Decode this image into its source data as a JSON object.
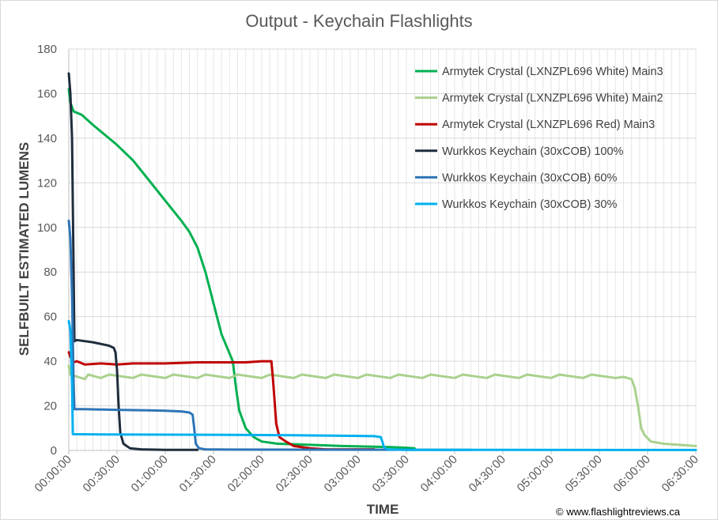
{
  "chart_data": {
    "type": "line",
    "title": "Output - Keychain Flashlights",
    "xlabel": "TIME",
    "ylabel": "SELFBUILT ESTIMATED LUMENS",
    "credit": "© www.flashlightreviews.ca",
    "xlim_minutes": [
      0,
      390
    ],
    "ylim": [
      0,
      180
    ],
    "y_ticks": [
      0,
      20,
      40,
      60,
      80,
      100,
      120,
      140,
      160,
      180
    ],
    "x_ticks": [
      "00:00:00",
      "00:30:00",
      "01:00:00",
      "01:30:00",
      "02:00:00",
      "02:30:00",
      "03:00:00",
      "03:30:00",
      "04:00:00",
      "04:30:00",
      "05:00:00",
      "05:30:00",
      "06:00:00",
      "06:30:00"
    ],
    "grid": true,
    "legend_position": "top-right",
    "series": [
      {
        "name": "Armytek Crystal (LXNZPL696 White) Main3",
        "color": "#00b050",
        "points": [
          [
            0,
            162
          ],
          [
            1,
            156
          ],
          [
            3,
            152
          ],
          [
            8,
            150.5
          ],
          [
            15,
            146
          ],
          [
            25,
            140
          ],
          [
            30,
            137
          ],
          [
            40,
            130
          ],
          [
            50,
            121
          ],
          [
            60,
            112
          ],
          [
            70,
            103
          ],
          [
            75,
            98
          ],
          [
            80,
            91
          ],
          [
            85,
            80
          ],
          [
            90,
            66
          ],
          [
            95,
            52
          ],
          [
            102,
            40
          ],
          [
            104,
            28
          ],
          [
            106,
            18
          ],
          [
            110,
            10
          ],
          [
            115,
            6
          ],
          [
            120,
            4
          ],
          [
            130,
            3
          ],
          [
            150,
            2.5
          ],
          [
            170,
            2
          ],
          [
            200,
            1.5
          ],
          [
            210,
            1.2
          ],
          [
            215,
            1
          ]
        ]
      },
      {
        "name": "Armytek Crystal (LXNZPL696 White) Main2",
        "color": "#a9d18e",
        "points": [
          [
            0,
            38
          ],
          [
            1,
            34
          ],
          [
            10,
            32
          ],
          [
            12,
            34
          ],
          [
            20,
            32.5
          ],
          [
            25,
            34
          ],
          [
            40,
            32.5
          ],
          [
            45,
            34
          ],
          [
            60,
            32.5
          ],
          [
            65,
            34
          ],
          [
            80,
            32.5
          ],
          [
            85,
            34
          ],
          [
            100,
            32.5
          ],
          [
            105,
            34
          ],
          [
            120,
            32.5
          ],
          [
            125,
            34
          ],
          [
            140,
            32.5
          ],
          [
            145,
            34
          ],
          [
            160,
            32.5
          ],
          [
            165,
            34
          ],
          [
            180,
            32.5
          ],
          [
            185,
            34
          ],
          [
            200,
            32.5
          ],
          [
            205,
            34
          ],
          [
            220,
            32.5
          ],
          [
            225,
            34
          ],
          [
            240,
            32.5
          ],
          [
            245,
            34
          ],
          [
            260,
            32.5
          ],
          [
            265,
            34
          ],
          [
            280,
            32.5
          ],
          [
            285,
            34
          ],
          [
            300,
            32.5
          ],
          [
            305,
            34
          ],
          [
            320,
            32.5
          ],
          [
            325,
            34
          ],
          [
            340,
            32.5
          ],
          [
            345,
            33
          ],
          [
            350,
            32
          ],
          [
            352,
            28
          ],
          [
            354,
            20
          ],
          [
            356,
            10
          ],
          [
            358,
            7
          ],
          [
            362,
            4
          ],
          [
            370,
            3
          ],
          [
            390,
            2
          ]
        ]
      },
      {
        "name": "Armytek Crystal (LXNZPL696 Red) Main3",
        "color": "#c00000",
        "points": [
          [
            0,
            44
          ],
          [
            1,
            42
          ],
          [
            3,
            39.5
          ],
          [
            5,
            40
          ],
          [
            10,
            38.5
          ],
          [
            20,
            39
          ],
          [
            30,
            38.5
          ],
          [
            40,
            39
          ],
          [
            60,
            39
          ],
          [
            80,
            39.5
          ],
          [
            100,
            39.5
          ],
          [
            110,
            39.5
          ],
          [
            120,
            40
          ],
          [
            126,
            40
          ],
          [
            127,
            32
          ],
          [
            128,
            22
          ],
          [
            129,
            12
          ],
          [
            131,
            6
          ],
          [
            135,
            4
          ],
          [
            140,
            2
          ],
          [
            150,
            1
          ],
          [
            160,
            0.5
          ],
          [
            190,
            0.5
          ]
        ]
      },
      {
        "name": "Wurkkos Keychain (30xCOB) 100%",
        "color": "#1f2d3d",
        "points": [
          [
            0,
            169
          ],
          [
            1,
            160
          ],
          [
            2,
            140
          ],
          [
            3,
            80
          ],
          [
            3.5,
            49
          ],
          [
            5,
            49.5
          ],
          [
            15,
            48.5
          ],
          [
            25,
            47
          ],
          [
            28,
            46
          ],
          [
            29,
            44
          ],
          [
            30,
            36
          ],
          [
            31,
            20
          ],
          [
            32,
            8
          ],
          [
            34,
            3
          ],
          [
            38,
            1
          ],
          [
            45,
            0.5
          ],
          [
            60,
            0.3
          ],
          [
            80,
            0.3
          ]
        ]
      },
      {
        "name": "Wurkkos Keychain (30xCOB) 60%",
        "color": "#2e75b6",
        "points": [
          [
            0,
            103
          ],
          [
            1,
            95
          ],
          [
            2,
            70
          ],
          [
            3,
            30
          ],
          [
            3.5,
            18.5
          ],
          [
            10,
            18.5
          ],
          [
            30,
            18.2
          ],
          [
            50,
            18
          ],
          [
            60,
            17.8
          ],
          [
            70,
            17.5
          ],
          [
            75,
            17
          ],
          [
            77,
            16
          ],
          [
            78,
            10
          ],
          [
            79,
            3
          ],
          [
            81,
            1
          ],
          [
            85,
            0.5
          ],
          [
            100,
            0.4
          ],
          [
            250,
            0.3
          ]
        ]
      },
      {
        "name": "Wurkkos Keychain (30xCOB) 30%",
        "color": "#00b0f0",
        "points": [
          [
            0,
            58
          ],
          [
            1,
            54
          ],
          [
            2,
            30
          ],
          [
            2.5,
            7.3
          ],
          [
            20,
            7.2
          ],
          [
            60,
            7.1
          ],
          [
            100,
            7
          ],
          [
            140,
            6.8
          ],
          [
            170,
            6.6
          ],
          [
            190,
            6.4
          ],
          [
            194,
            6
          ],
          [
            195,
            4
          ],
          [
            196,
            1.5
          ],
          [
            198,
            0.5
          ],
          [
            210,
            0.3
          ],
          [
            390,
            0.2
          ]
        ]
      }
    ]
  }
}
